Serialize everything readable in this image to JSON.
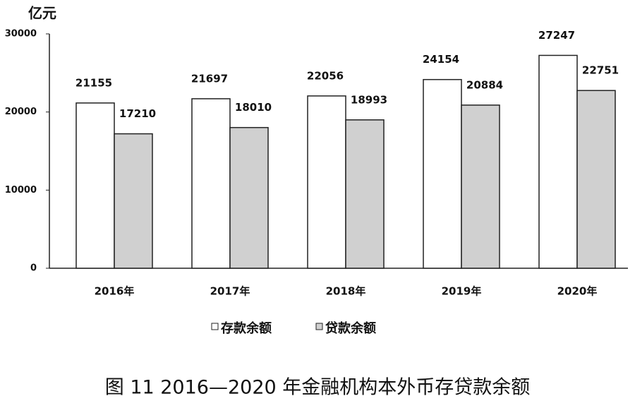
{
  "chart_data": {
    "type": "bar",
    "title": "图 11 2016—2020 年金融机构本外币存贷款余额",
    "y_label": "亿元",
    "categories": [
      "2016年",
      "2017年",
      "2018年",
      "2019年",
      "2020年"
    ],
    "series": [
      {
        "name": "存款余额",
        "color": "#ffffff",
        "values": [
          21155,
          21697,
          22056,
          24154,
          27247
        ]
      },
      {
        "name": "贷款余额",
        "color": "#d0d0d0",
        "values": [
          17210,
          18010,
          18993,
          20884,
          22751
        ]
      }
    ],
    "ylim": [
      0,
      30000
    ],
    "yticks": [
      0,
      10000,
      20000,
      30000
    ],
    "grid": false
  }
}
